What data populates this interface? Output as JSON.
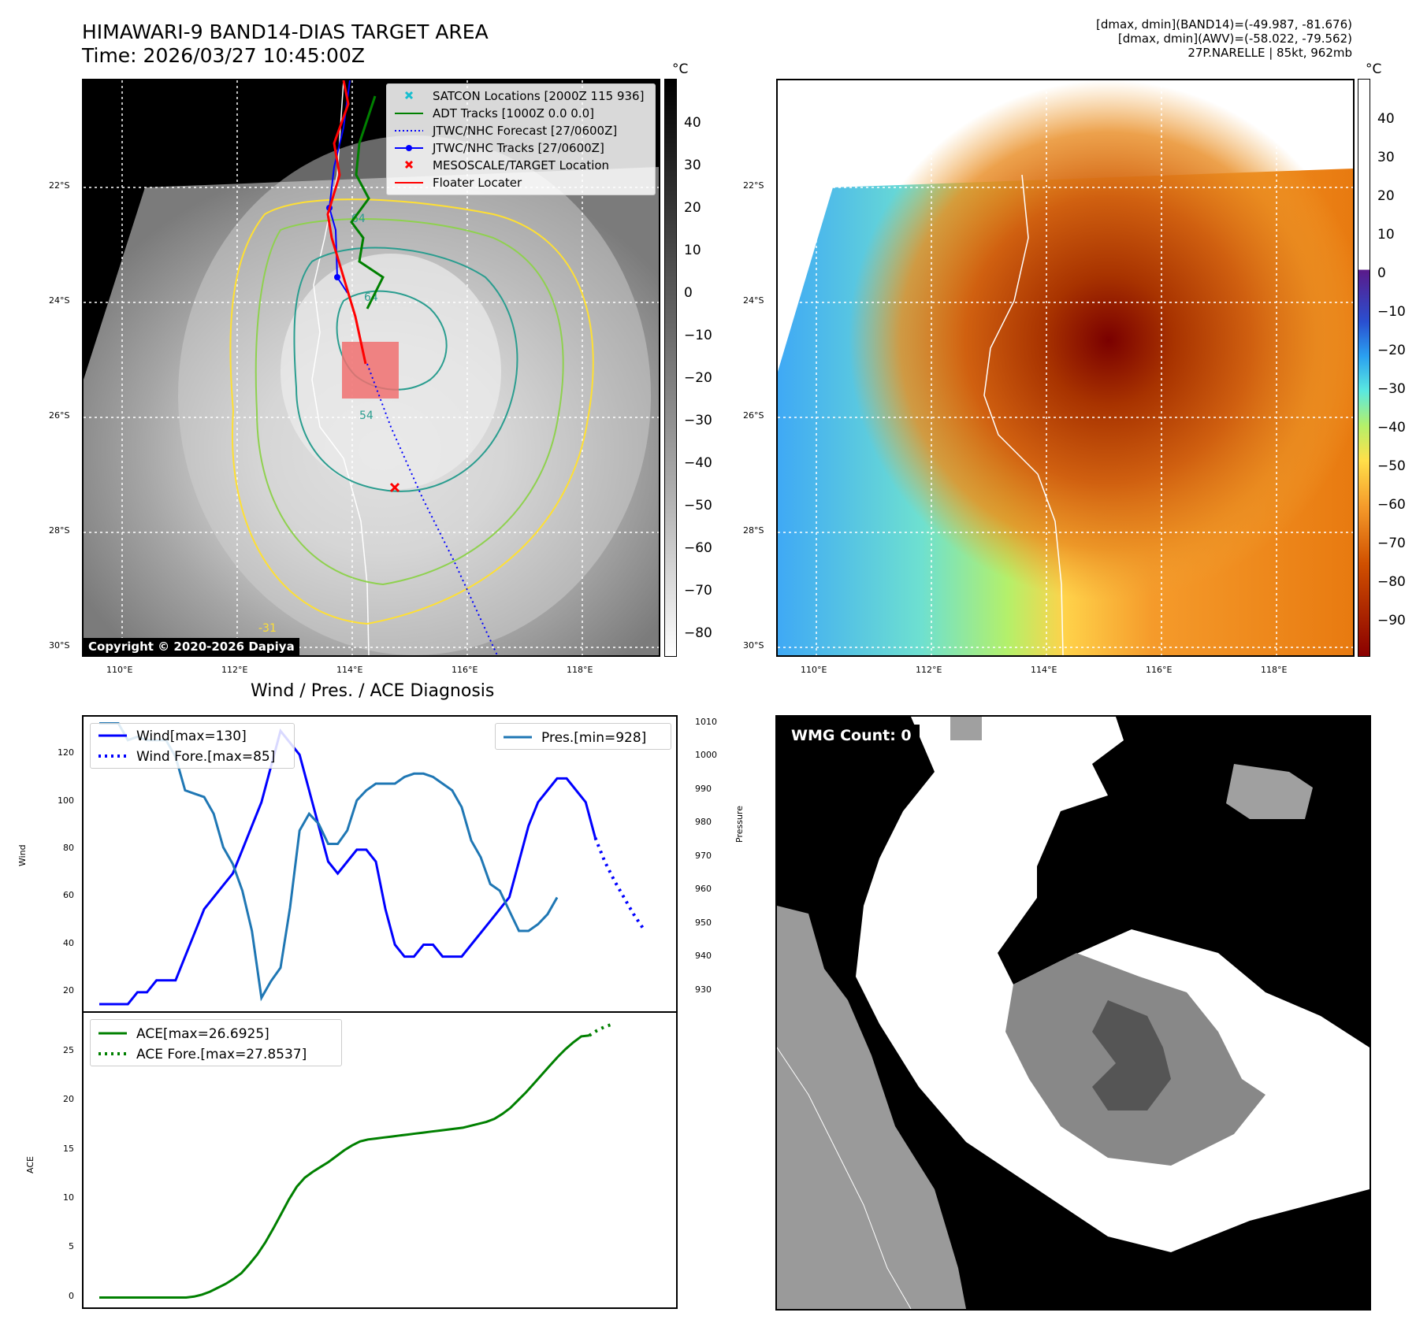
{
  "header": {
    "title_line1": "HIMAWARI-9 BAND14-DIAS TARGET AREA",
    "title_line2": "Time: 2026/03/27 10:45:00Z",
    "info_line1": "[dmax, dmin](BAND14)=(-49.987, -81.676)",
    "info_line2": "[dmax, dmin](AWV)=(-58.022, -79.562)",
    "info_line3": "27P.NARELLE | 85kt, 962mb"
  },
  "map_axes": {
    "lon_ticks": [
      "110°E",
      "112°E",
      "114°E",
      "116°E",
      "118°E"
    ],
    "lat_ticks": [
      "22°S",
      "24°S",
      "26°S",
      "28°S",
      "30°S"
    ]
  },
  "panel_ir": {
    "colorbar_unit": "°C",
    "colorbar_ticks": [
      "40",
      "30",
      "20",
      "10",
      "0",
      "−10",
      "−20",
      "−30",
      "−40",
      "−50",
      "−60",
      "−70",
      "−80"
    ],
    "legend": [
      {
        "label": "SATCON Locations [2000Z 115 936]",
        "color": "#17becf"
      },
      {
        "label": "ADT Tracks [1000Z 0.0 0.0]",
        "color": "#008000"
      },
      {
        "label": "JTWC/NHC Forecast [27/0600Z]",
        "color": "#0000ff"
      },
      {
        "label": "JTWC/NHC Tracks [27/0600Z]",
        "color": "#0000ff"
      },
      {
        "label": "MESOSCALE/TARGET Location",
        "color": "#ff0000"
      },
      {
        "label": "Floater Locater",
        "color": "#ff0000"
      }
    ],
    "contour_labels": [
      "64",
      "64",
      "54",
      "-31"
    ],
    "copyright": "Copyright © 2020-2026 Dapiya"
  },
  "panel_awv": {
    "colorbar_unit": "°C",
    "colorbar_ticks": [
      "40",
      "30",
      "20",
      "10",
      "0",
      "−10",
      "−20",
      "−30",
      "−40",
      "−50",
      "−60",
      "−70",
      "−80",
      "−90"
    ]
  },
  "panel_wmg": {
    "label": "WMG Count: 0"
  },
  "chart_data": [
    {
      "type": "line",
      "title": "Wind / Pres. / ACE Diagnosis",
      "xlabel": "",
      "ylabel": "Wind",
      "ylabel_right": "Pressure",
      "ylim": [
        12,
        136
      ],
      "ylim_right": [
        924,
        1012
      ],
      "yticks": [
        20,
        40,
        60,
        80,
        100,
        120
      ],
      "yticks_right": [
        930,
        940,
        950,
        960,
        970,
        980,
        990,
        1000,
        1010
      ],
      "series": [
        {
          "name": "Wind[max=130]",
          "color": "#0000ff",
          "style": "solid",
          "values": [
            15,
            15,
            15,
            15,
            20,
            20,
            25,
            25,
            25,
            35,
            45,
            55,
            60,
            65,
            70,
            80,
            90,
            100,
            115,
            130,
            125,
            120,
            105,
            90,
            75,
            70,
            75,
            80,
            80,
            75,
            55,
            40,
            35,
            35,
            40,
            40,
            35,
            35,
            35,
            40,
            45,
            50,
            55,
            60,
            75,
            90,
            100,
            105,
            110,
            110,
            105,
            100,
            85
          ]
        },
        {
          "name": "Wind Fore.[max=85]",
          "color": "#0000ff",
          "style": "dotted",
          "x_start": 52,
          "values": [
            85,
            75,
            67,
            60,
            53,
            47
          ]
        },
        {
          "name": "Pres.[min=928]",
          "color": "#1f77b4",
          "style": "solid",
          "axis": "right",
          "values": [
            1010,
            1010,
            1010,
            1005,
            1006,
            1005,
            1005,
            1005,
            1000,
            990,
            989,
            988,
            983,
            973,
            968,
            960,
            948,
            928,
            933,
            937,
            955,
            978,
            983,
            980,
            974,
            974,
            978,
            987,
            990,
            992,
            992,
            992,
            994,
            995,
            995,
            994,
            992,
            990,
            985,
            975,
            970,
            962,
            960,
            954,
            948,
            948,
            950,
            953,
            958
          ]
        }
      ]
    },
    {
      "type": "line",
      "title": "",
      "xlabel": "",
      "ylabel": "ACE",
      "ylim": [
        -1,
        29
      ],
      "yticks": [
        0,
        5,
        10,
        15,
        20,
        25
      ],
      "series": [
        {
          "name": "ACE[max=26.6925]",
          "color": "#008000",
          "style": "solid",
          "values": [
            0,
            0,
            0,
            0,
            0,
            0,
            0,
            0,
            0,
            0,
            0,
            0,
            0.1,
            0.3,
            0.6,
            1,
            1.4,
            1.9,
            2.5,
            3.4,
            4.4,
            5.6,
            7,
            8.5,
            10,
            11.3,
            12.2,
            12.8,
            13.3,
            13.8,
            14.4,
            15,
            15.5,
            15.9,
            16.1,
            16.2,
            16.3,
            16.4,
            16.5,
            16.6,
            16.7,
            16.8,
            16.9,
            17,
            17.1,
            17.2,
            17.3,
            17.5,
            17.7,
            17.9,
            18.2,
            18.7,
            19.3,
            20.1,
            20.9,
            21.8,
            22.7,
            23.6,
            24.5,
            25.3,
            26,
            26.6,
            26.7
          ]
        },
        {
          "name": "ACE Fore.[max=27.8537]",
          "color": "#008000",
          "style": "dotted",
          "x_start": 62,
          "values": [
            26.69,
            27.2,
            27.6,
            27.85
          ]
        }
      ]
    }
  ]
}
